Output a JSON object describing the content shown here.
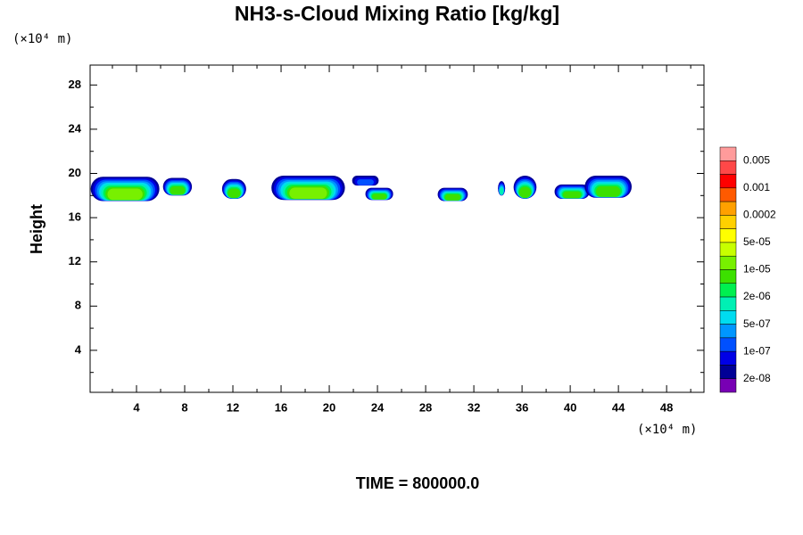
{
  "chart_data": {
    "type": "contour",
    "title": "NH3-s-Cloud Mixing Ratio [kg/kg]",
    "y_unit": "(×10⁴ m)",
    "x_unit": "(×10⁴ m)",
    "ylabel": "Height",
    "footer": "TIME = 800000.0",
    "xlim": [
      0.15,
      51.1
    ],
    "ylim": [
      0.2,
      29.8
    ],
    "xticks": [
      4,
      8,
      12,
      16,
      20,
      24,
      28,
      32,
      36,
      40,
      44,
      48
    ],
    "yticks": [
      4,
      8,
      12,
      16,
      20,
      24,
      28
    ],
    "xminorticks": [
      2,
      6,
      10,
      14,
      18,
      22,
      26,
      30,
      34,
      38,
      42,
      46,
      50
    ],
    "yminorticks": [
      2,
      6,
      10,
      14,
      18,
      22,
      26
    ],
    "colorbar": {
      "colors": [
        "#ff9b9b",
        "#ff4848",
        "#ff0000",
        "#ff5a00",
        "#ffa000",
        "#ffd000",
        "#ffff00",
        "#c8ff00",
        "#78f000",
        "#3ce000",
        "#00f050",
        "#00f0b4",
        "#00dcf0",
        "#0096ff",
        "#0050ff",
        "#0000e6",
        "#000096",
        "#7800b4"
      ],
      "labels": [
        0.005,
        0.001,
        0.0002,
        {
          "value": 5e-05,
          "label": "5e-05"
        },
        {
          "value": 1e-05,
          "label": "1e-05"
        },
        {
          "value": 2e-06,
          "label": "2e-06"
        },
        {
          "value": 5e-07,
          "label": "5e-07"
        },
        {
          "value": 1e-07,
          "label": "1e-07"
        },
        {
          "value": 2e-08,
          "label": "2e-08"
        }
      ]
    },
    "clouds": [
      {
        "x": [
          0.2,
          5.9
        ],
        "y": [
          17.5,
          19.7
        ],
        "peak": 8
      },
      {
        "x": [
          6.2,
          8.6
        ],
        "y": [
          18.0,
          19.6
        ],
        "peak": 9
      },
      {
        "x": [
          11.1,
          13.1
        ],
        "y": [
          17.7,
          19.5
        ],
        "peak": 9
      },
      {
        "x": [
          15.2,
          21.3
        ],
        "y": [
          17.6,
          19.8
        ],
        "peak": 8
      },
      {
        "x": [
          21.9,
          24.1
        ],
        "y": [
          18.9,
          19.8
        ],
        "peak": 14
      },
      {
        "x": [
          23.0,
          25.3
        ],
        "y": [
          17.6,
          18.7
        ],
        "peak": 9
      },
      {
        "x": [
          29.0,
          31.5
        ],
        "y": [
          17.5,
          18.7
        ],
        "peak": 9
      },
      {
        "x": [
          34.0,
          34.6
        ],
        "y": [
          18.0,
          19.3
        ],
        "peak": 11
      },
      {
        "x": [
          35.3,
          37.2
        ],
        "y": [
          17.7,
          19.8
        ],
        "peak": 9
      },
      {
        "x": [
          38.7,
          41.6
        ],
        "y": [
          17.7,
          19.0
        ],
        "peak": 9
      },
      {
        "x": [
          41.2,
          45.1
        ],
        "y": [
          17.8,
          19.8
        ],
        "peak": 9
      }
    ]
  }
}
